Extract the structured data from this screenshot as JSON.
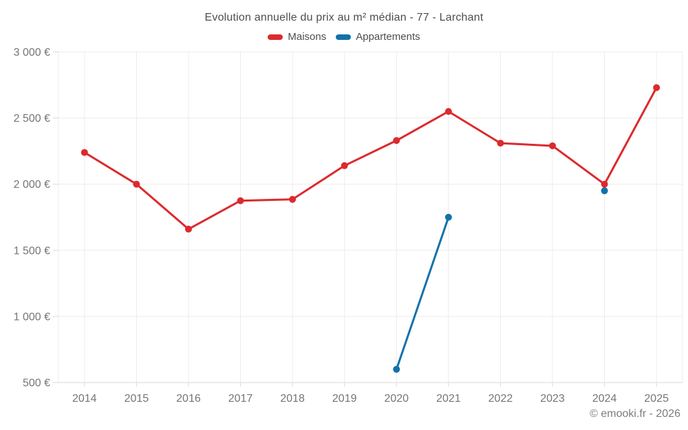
{
  "chart_data": {
    "type": "line",
    "title": "Evolution annuelle du prix au m² médian - 77 - Larchant",
    "categories": [
      "2014",
      "2015",
      "2016",
      "2017",
      "2018",
      "2019",
      "2020",
      "2021",
      "2022",
      "2023",
      "2024",
      "2025"
    ],
    "series": [
      {
        "name": "Maisons",
        "color": "#dc2a2e",
        "values": [
          2240,
          2000,
          1660,
          1875,
          1885,
          2140,
          2330,
          2550,
          2310,
          2290,
          2000,
          2730
        ]
      },
      {
        "name": "Appartements",
        "color": "#1272aa",
        "values": [
          null,
          null,
          null,
          null,
          null,
          null,
          600,
          1750,
          null,
          null,
          1950,
          null
        ]
      }
    ],
    "ylim": [
      500,
      3000
    ],
    "yticks": [
      {
        "value": 500,
        "label": "500 €"
      },
      {
        "value": 1000,
        "label": "1 000 €"
      },
      {
        "value": 1500,
        "label": "1 500 €"
      },
      {
        "value": 2000,
        "label": "2 000 €"
      },
      {
        "value": 2500,
        "label": "2 500 €"
      },
      {
        "value": 3000,
        "label": "3 000 €"
      }
    ],
    "grid": true,
    "legend_position": "top",
    "xlabel": "",
    "ylabel": "",
    "colors": {
      "gridline": "#ececec",
      "axis": "#d9d9d9",
      "tick_label": "#757575",
      "title_text": "#4d4d4d"
    }
  },
  "footer": {
    "credit": "© emooki.fr - 2026"
  }
}
